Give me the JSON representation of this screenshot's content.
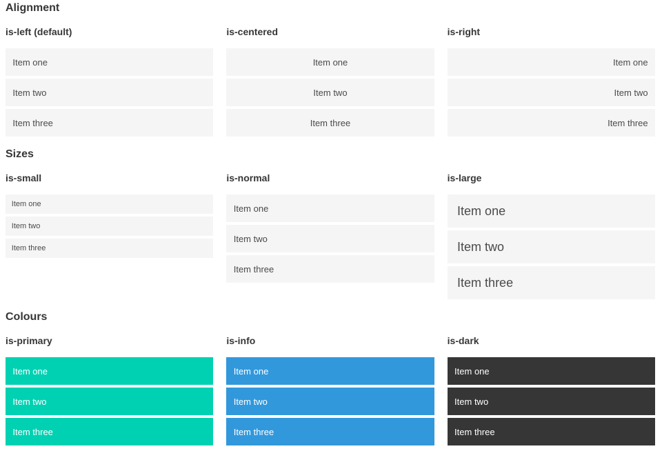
{
  "colors": {
    "primary": "#00d1b2",
    "info": "#3298dc",
    "dark": "#363636",
    "item_background": "#f5f5f5",
    "item_text": "#4a4a4a",
    "heading_text": "#363636"
  },
  "sections": [
    {
      "title": "Alignment",
      "groups": [
        {
          "label": "is-left (default)",
          "modifier": "left",
          "items": [
            "Item one",
            "Item two",
            "Item three"
          ]
        },
        {
          "label": "is-centered",
          "modifier": "centered",
          "items": [
            "Item one",
            "Item two",
            "Item three"
          ]
        },
        {
          "label": "is-right",
          "modifier": "right",
          "items": [
            "Item one",
            "Item two",
            "Item three"
          ]
        }
      ]
    },
    {
      "title": "Sizes",
      "groups": [
        {
          "label": "is-small",
          "modifier": "small",
          "items": [
            "Item one",
            "Item two",
            "Item three"
          ]
        },
        {
          "label": "is-normal",
          "modifier": "normal",
          "items": [
            "Item one",
            "Item two",
            "Item three"
          ]
        },
        {
          "label": "is-large",
          "modifier": "large",
          "items": [
            "Item one",
            "Item two",
            "Item three"
          ]
        }
      ]
    },
    {
      "title": "Colours",
      "groups": [
        {
          "label": "is-primary",
          "modifier": "primary",
          "items": [
            "Item one",
            "Item two",
            "Item three"
          ]
        },
        {
          "label": "is-info",
          "modifier": "info",
          "items": [
            "Item one",
            "Item two",
            "Item three"
          ]
        },
        {
          "label": "is-dark",
          "modifier": "dark",
          "items": [
            "Item one",
            "Item two",
            "Item three"
          ]
        }
      ]
    }
  ]
}
